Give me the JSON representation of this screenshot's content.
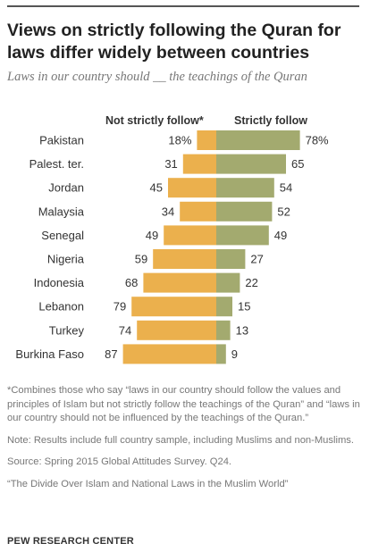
{
  "title": "Views on strictly following the Quran for laws differ widely between countries",
  "subtitle": "Laws in our country should __ the teachings of the Quran",
  "colors": {
    "not_strict": "#EBB04D",
    "strict": "#A3AA6F",
    "label": "#333333"
  },
  "chart_data": {
    "type": "bar",
    "orientation": "horizontal-diverging",
    "categories": [
      "Pakistan",
      "Palest. ter.",
      "Jordan",
      "Malaysia",
      "Senegal",
      "Nigeria",
      "Indonesia",
      "Lebanon",
      "Turkey",
      "Burkina Faso"
    ],
    "series": [
      {
        "name": "Not strictly follow*",
        "values": [
          18,
          31,
          45,
          34,
          49,
          59,
          68,
          79,
          74,
          87
        ],
        "labels": [
          "18%",
          "31",
          "45",
          "34",
          "49",
          "59",
          "68",
          "79",
          "74",
          "87"
        ]
      },
      {
        "name": "Strictly follow",
        "values": [
          78,
          65,
          54,
          52,
          49,
          27,
          22,
          15,
          13,
          9
        ],
        "labels": [
          "78%",
          "65",
          "54",
          "52",
          "49",
          "27",
          "22",
          "15",
          "13",
          "9"
        ]
      }
    ]
  },
  "footnote": "*Combines those who say “laws in our country should follow the values and principles of Islam but not strictly follow the teachings of the Quran” and “laws in our country should not be influenced by the teachings of the Quran.”",
  "note": "Note: Results include full country sample, including Muslims and non-Muslims.",
  "source": "Source: Spring 2015 Global Attitudes Survey. Q24.",
  "report": "“The Divide Over Islam and National Laws in the Muslim World”",
  "organization": "PEW RESEARCH CENTER"
}
